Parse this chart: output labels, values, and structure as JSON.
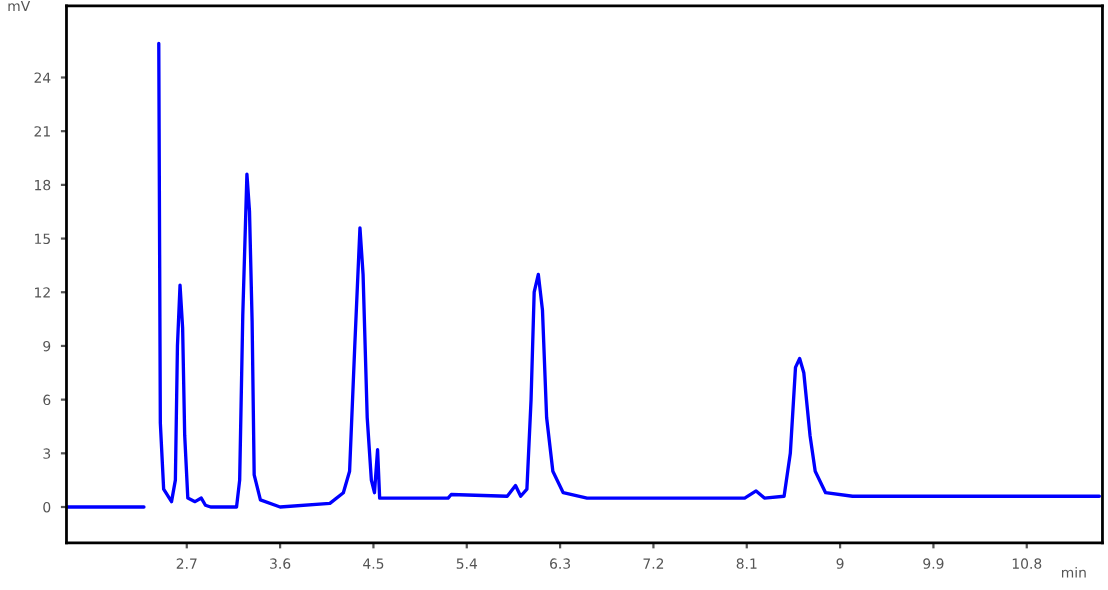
{
  "chart_data": {
    "type": "line",
    "xlabel": "min",
    "ylabel": "mV",
    "xlim": [
      1.54,
      11.53
    ],
    "ylim": [
      -2,
      28
    ],
    "xticks": [
      2.7,
      3.6,
      4.5,
      5.4,
      6.3,
      7.2,
      8.1,
      9,
      9.9,
      10.8
    ],
    "yticks": [
      0,
      3,
      6,
      9,
      12,
      15,
      18,
      21,
      24
    ],
    "grid": false,
    "legend": false,
    "marker": "none",
    "line_style": "solid",
    "series": [
      {
        "color": "#0000ff",
        "x": [
          1.55,
          2.287,
          2.3,
          2.42,
          2.43,
          2.445,
          2.477,
          2.553,
          2.59,
          2.61,
          2.635,
          2.66,
          2.68,
          2.71,
          2.78,
          2.84,
          2.88,
          2.93,
          3.18,
          3.21,
          3.24,
          3.28,
          3.305,
          3.33,
          3.35,
          3.41,
          3.6,
          4.08,
          4.21,
          4.27,
          4.32,
          4.37,
          4.4,
          4.44,
          4.48,
          4.51,
          4.54,
          4.56,
          4.65,
          5.22,
          5.25,
          5.79,
          5.87,
          5.92,
          5.98,
          6.02,
          6.05,
          6.09,
          6.13,
          6.17,
          6.23,
          6.33,
          6.56,
          8.08,
          8.19,
          8.27,
          8.46,
          8.52,
          8.57,
          8.61,
          8.65,
          8.71,
          8.76,
          8.86,
          9.12,
          11.5
        ],
        "values": [
          0,
          0,
          null,
          null,
          25.9,
          4.7,
          1.0,
          0.3,
          1.5,
          9,
          12.4,
          10,
          4,
          0.5,
          0.3,
          0.5,
          0.1,
          0,
          0,
          1.5,
          10.7,
          18.6,
          16.5,
          10.4,
          1.8,
          0.4,
          0,
          0.2,
          0.8,
          2,
          9,
          15.6,
          13,
          5,
          1.5,
          0.8,
          3.2,
          0.5,
          0.5,
          0.5,
          0.7,
          0.6,
          1.2,
          0.6,
          1,
          6,
          12,
          13,
          11,
          5,
          2,
          0.8,
          0.5,
          0.5,
          0.9,
          0.5,
          0.6,
          3,
          7.8,
          8.3,
          7.5,
          4,
          2,
          0.8,
          0.6,
          0.6
        ]
      }
    ]
  }
}
